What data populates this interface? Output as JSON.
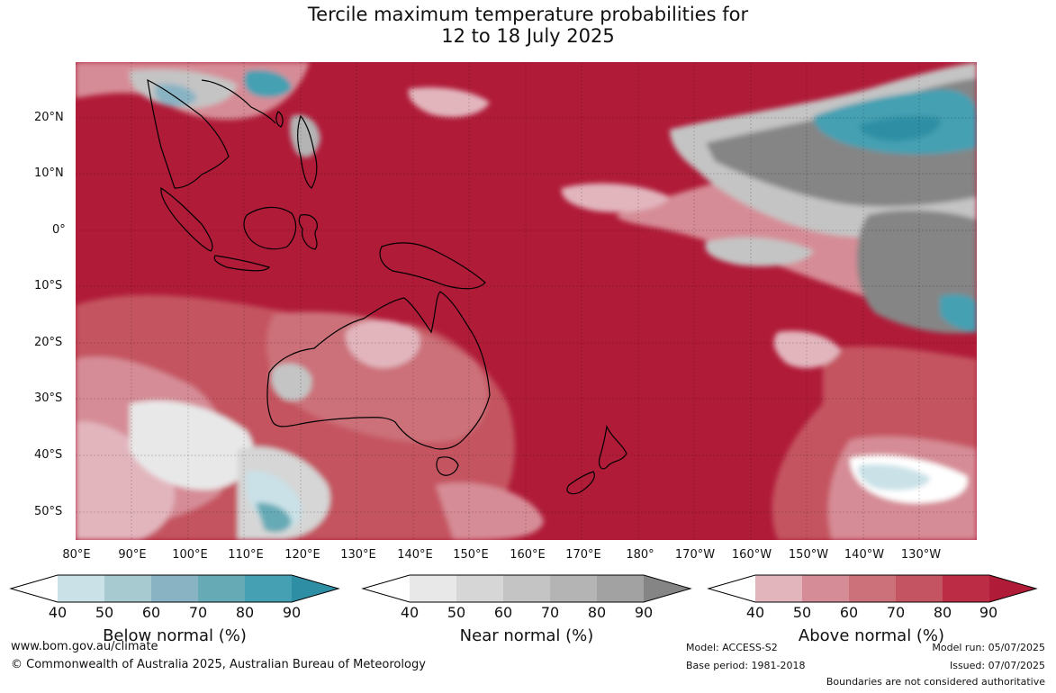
{
  "title_line1": "Tercile maximum temperature probabilities for",
  "title_line2": "12 to 18 July 2025",
  "lat_labels": [
    "20°N",
    "10°N",
    "0°",
    "10°S",
    "20°S",
    "30°S",
    "40°S",
    "50°S"
  ],
  "lon_labels": [
    "80°E",
    "90°E",
    "100°E",
    "110°E",
    "120°E",
    "130°E",
    "140°E",
    "150°E",
    "160°E",
    "170°E",
    "180°",
    "170°W",
    "160°W",
    "150°W",
    "140°W",
    "130°W"
  ],
  "legends": [
    {
      "name": "below",
      "title": "Below normal (%)",
      "ticks": [
        "40",
        "50",
        "60",
        "70",
        "80",
        "90"
      ],
      "colors": [
        "#ffffff",
        "#c9e1e7",
        "#a7cad1",
        "#89b3c3",
        "#66aab6",
        "#44a0b2",
        "#2e8fa4"
      ]
    },
    {
      "name": "near",
      "title": "Near normal (%)",
      "ticks": [
        "40",
        "50",
        "60",
        "70",
        "80",
        "90"
      ],
      "colors": [
        "#ffffff",
        "#e8e8e8",
        "#d6d6d6",
        "#c4c4c4",
        "#b4b4b4",
        "#a2a2a2",
        "#858585"
      ]
    },
    {
      "name": "above",
      "title": "Above normal (%)",
      "ticks": [
        "40",
        "50",
        "60",
        "70",
        "80",
        "90"
      ],
      "colors": [
        "#ffffff",
        "#e2b5bd",
        "#d68c96",
        "#cc7179",
        "#c45461",
        "#bc2d45",
        "#b01b38"
      ]
    }
  ],
  "footer": {
    "website": "www.bom.gov.au/climate",
    "copyright": "© Commonwealth of Australia 2025, Australian Bureau of Meteorology",
    "model": "Model: ACCESS-S2",
    "base_period": "Base period: 1981-2018",
    "model_run": "Model run: 05/07/2025",
    "issued": "Issued: 07/07/2025",
    "boundaries": "Boundaries are not considered authoritative"
  }
}
